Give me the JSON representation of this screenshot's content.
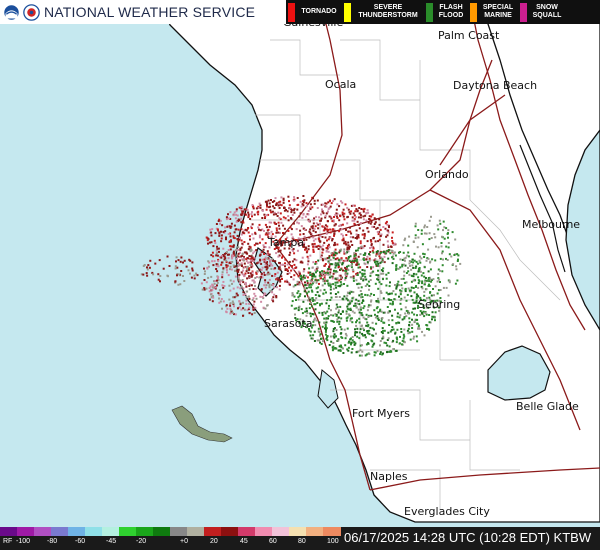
{
  "header": {
    "title": "NATIONAL WEATHER SERVICE",
    "logos": [
      "noaa-logo",
      "nws-logo"
    ]
  },
  "legend": [
    {
      "label": "TORNADO",
      "color": "#ee1111"
    },
    {
      "label": "SEVERE THUNDERSTORM",
      "color": "#ffff00"
    },
    {
      "label": "FLASH FLOOD",
      "color": "#2a8c2a"
    },
    {
      "label": "SPECIAL MARINE",
      "color": "#ff9900"
    },
    {
      "label": "SNOW SQUALL",
      "color": "#cc1f8f"
    }
  ],
  "cities": [
    {
      "name": "Gainesville"
    },
    {
      "name": "Palm Coast"
    },
    {
      "name": "Ocala"
    },
    {
      "name": "Daytona Beach"
    },
    {
      "name": "Orlando"
    },
    {
      "name": "Melbourne"
    },
    {
      "name": "Tampa"
    },
    {
      "name": "Sebring"
    },
    {
      "name": "Sarasota"
    },
    {
      "name": "Fort Myers"
    },
    {
      "name": "Belle Glade"
    },
    {
      "name": "Naples"
    },
    {
      "name": "Everglades City"
    }
  ],
  "colors": {
    "water": "#c5e8ef",
    "land": "#ffffff",
    "roads": "#8b1a1a",
    "county_lines": "#bdbdbd",
    "radar_light": "#c81f1f",
    "radar_mid": "#8c1818",
    "radar_pink": "#cf8aa4",
    "radar_green": "#2f8a2f",
    "radar_dark_green": "#1c6b1c",
    "radar_gray": "#9a9a8e"
  },
  "scale": {
    "tick_labels": [
      "RF",
      "-100",
      "-80",
      "-60",
      "-45",
      "-20",
      "+0",
      "20",
      "45",
      "60",
      "80",
      "100"
    ]
  },
  "timestamp": "06/17/2025 14:28 UTC (10:28 EDT) KTBW"
}
